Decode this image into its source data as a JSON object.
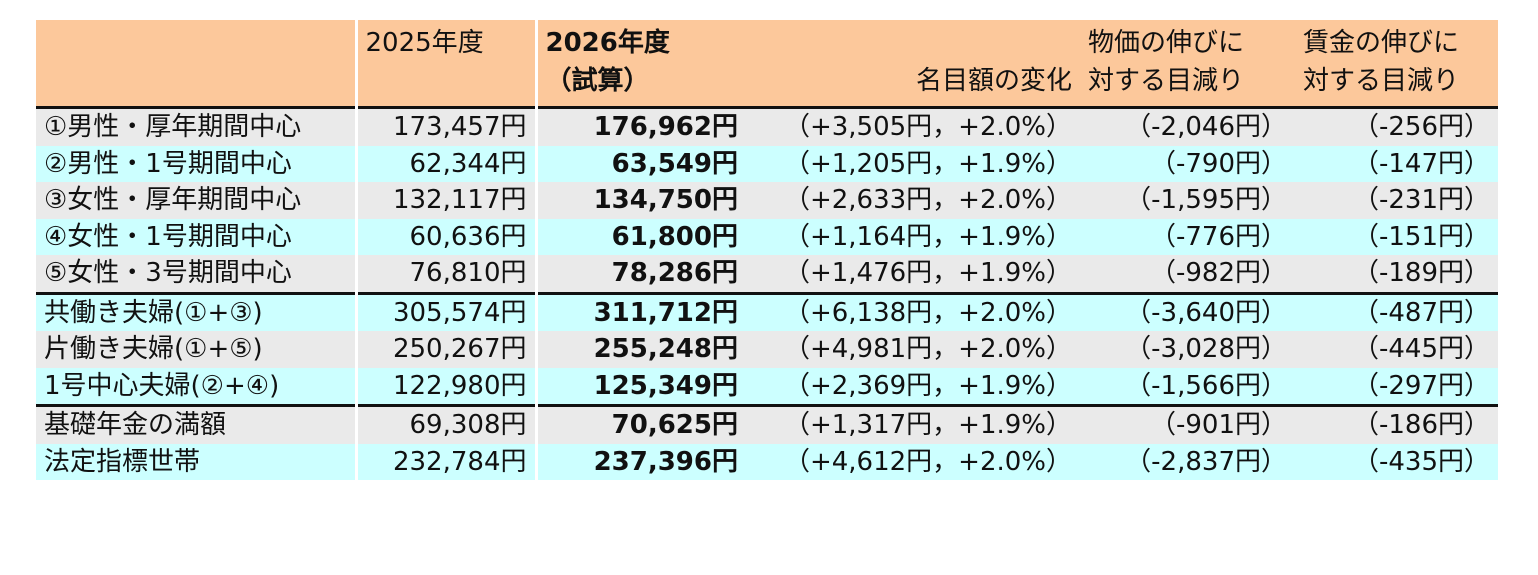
{
  "header": {
    "col0": "",
    "col1": "2025年度",
    "col2_line1": "2026年度",
    "col2_line2": "（試算）",
    "col3": "名目額の変化",
    "col4_line1": "物価の伸びに",
    "col4_line2": "対する目減り",
    "col5_line1": "賃金の伸びに",
    "col5_line2": "対する目減り"
  },
  "rows": [
    {
      "label": "①男性・厚年期間中心",
      "y2025": "173,457円",
      "y2026": "176,962円",
      "change": "（+3,505円，+2.0%）",
      "price": "（-2,046円）",
      "wage": "（-256円）"
    },
    {
      "label": "②男性・1号期間中心",
      "y2025": "62,344円",
      "y2026": "63,549円",
      "change": "（+1,205円，+1.9%）",
      "price": "（-790円）",
      "wage": "（-147円）"
    },
    {
      "label": "③女性・厚年期間中心",
      "y2025": "132,117円",
      "y2026": "134,750円",
      "change": "（+2,633円，+2.0%）",
      "price": "（-1,595円）",
      "wage": "（-231円）"
    },
    {
      "label": "④女性・1号期間中心",
      "y2025": "60,636円",
      "y2026": "61,800円",
      "change": "（+1,164円，+1.9%）",
      "price": "（-776円）",
      "wage": "（-151円）"
    },
    {
      "label": "⑤女性・3号期間中心",
      "y2025": "76,810円",
      "y2026": "78,286円",
      "change": "（+1,476円，+1.9%）",
      "price": "（-982円）",
      "wage": "（-189円）"
    },
    {
      "label": "共働き夫婦(①+③)",
      "y2025": "305,574円",
      "y2026": "311,712円",
      "change": "（+6,138円，+2.0%）",
      "price": "（-3,640円）",
      "wage": "（-487円）"
    },
    {
      "label": "片働き夫婦(①+⑤)",
      "y2025": "250,267円",
      "y2026": "255,248円",
      "change": "（+4,981円，+2.0%）",
      "price": "（-3,028円）",
      "wage": "（-445円）"
    },
    {
      "label": "1号中心夫婦(②+④)",
      "y2025": "122,980円",
      "y2026": "125,349円",
      "change": "（+2,369円，+1.9%）",
      "price": "（-1,566円）",
      "wage": "（-297円）"
    },
    {
      "label": "基礎年金の満額",
      "y2025": "69,308円",
      "y2026": "70,625円",
      "change": "（+1,317円，+1.9%）",
      "price": "（-901円）",
      "wage": "（-186円）"
    },
    {
      "label": "法定指標世帯",
      "y2025": "232,784円",
      "y2026": "237,396円",
      "change": "（+4,612円，+2.0%）",
      "price": "（-2,837円）",
      "wage": "（-435円）"
    }
  ],
  "colors": {
    "header_bg": "#fcc89b",
    "row_gray": "#eaeaea",
    "row_cyan": "#ccffff",
    "divider": "#111111"
  }
}
